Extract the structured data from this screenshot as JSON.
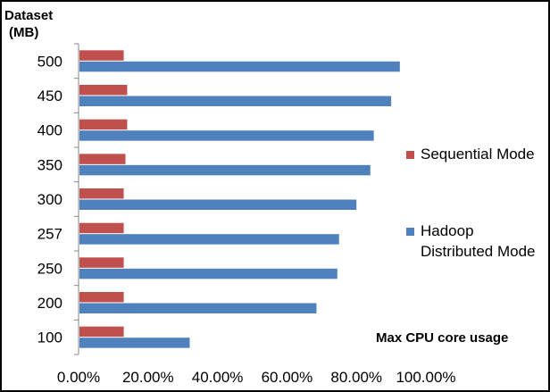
{
  "chart_data": {
    "type": "bar",
    "orientation": "horizontal",
    "categories": [
      "100",
      "200",
      "250",
      "257",
      "300",
      "350",
      "400",
      "450",
      "500"
    ],
    "series": [
      {
        "name": "Sequential Mode",
        "color": "#c0504d",
        "values": [
          0.13,
          0.13,
          0.13,
          0.13,
          0.13,
          0.135,
          0.14,
          0.14,
          0.13
        ]
      },
      {
        "name": "Hadoop Distributed Mode",
        "color": "#4f81bd",
        "values": [
          0.32,
          0.685,
          0.745,
          0.75,
          0.8,
          0.84,
          0.85,
          0.9,
          0.925
        ]
      }
    ],
    "ylabel_lines": [
      "Dataset",
      "(MB)"
    ],
    "xlim": [
      0,
      1
    ],
    "x_ticks": [
      "0.00%",
      "20.00%",
      "40.00%",
      "60.00%",
      "80.00%",
      "100.00%"
    ],
    "legend": {
      "position": "right",
      "entries": [
        {
          "lines": [
            "Sequential Mode"
          ],
          "color": "#c0504d"
        },
        {
          "lines": [
            "Hadoop",
            "Distributed Mode"
          ],
          "color": "#4f81bd"
        }
      ]
    },
    "annotation": "Max CPU core usage",
    "grid": false
  }
}
